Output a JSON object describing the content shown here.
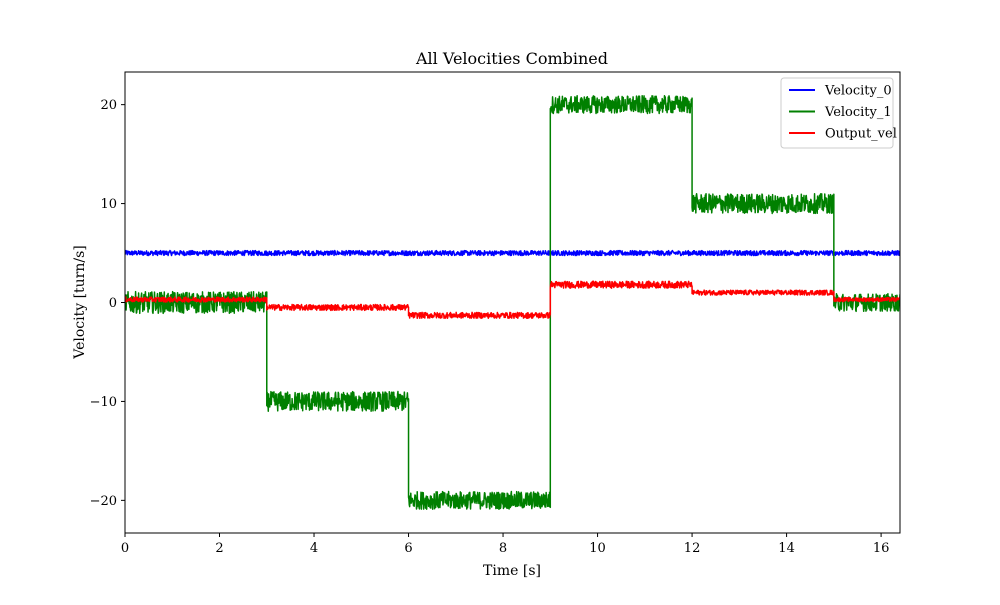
{
  "chart_data": {
    "type": "line",
    "title": "All Velocities Combined",
    "xlabel": "Time [s]",
    "ylabel": "Velocity [turn/s]",
    "xlim": [
      0,
      16.4
    ],
    "ylim": [
      -23.3,
      23.3
    ],
    "xticks": [
      0,
      2,
      4,
      6,
      8,
      10,
      12,
      14,
      16
    ],
    "yticks": [
      -20,
      -10,
      0,
      10,
      20
    ],
    "xtick_labels": [
      "0",
      "2",
      "4",
      "6",
      "8",
      "10",
      "12",
      "14",
      "16"
    ],
    "ytick_labels": [
      "−20",
      "−10",
      "0",
      "10",
      "20"
    ],
    "grid": false,
    "legend_position": "top-right",
    "series": [
      {
        "name": "Velocity_0",
        "color": "#0000ff",
        "segments": [
          {
            "t0": 0.0,
            "t1": 16.4,
            "level": 5.0,
            "noise": 0.25
          }
        ]
      },
      {
        "name": "Velocity_1",
        "color": "#008000",
        "segments": [
          {
            "t0": 0.0,
            "t1": 3.0,
            "level": 0.0,
            "noise": 1.1
          },
          {
            "t0": 3.0,
            "t1": 6.0,
            "level": -10.0,
            "noise": 1.0
          },
          {
            "t0": 6.0,
            "t1": 9.0,
            "level": -20.0,
            "noise": 0.9
          },
          {
            "t0": 9.0,
            "t1": 12.0,
            "level": 20.0,
            "noise": 0.9
          },
          {
            "t0": 12.0,
            "t1": 15.0,
            "level": 10.0,
            "noise": 1.0
          },
          {
            "t0": 15.0,
            "t1": 16.4,
            "level": 0.0,
            "noise": 0.9
          }
        ]
      },
      {
        "name": "Output_vel",
        "color": "#ff0000",
        "segments": [
          {
            "t0": 0.0,
            "t1": 3.0,
            "level": 0.3,
            "noise": 0.25
          },
          {
            "t0": 3.0,
            "t1": 6.0,
            "level": -0.5,
            "noise": 0.3
          },
          {
            "t0": 6.0,
            "t1": 9.0,
            "level": -1.3,
            "noise": 0.3
          },
          {
            "t0": 9.0,
            "t1": 12.0,
            "level": 1.8,
            "noise": 0.35
          },
          {
            "t0": 12.0,
            "t1": 15.0,
            "level": 1.0,
            "noise": 0.25
          },
          {
            "t0": 15.0,
            "t1": 16.4,
            "level": 0.3,
            "noise": 0.2
          }
        ]
      }
    ]
  }
}
